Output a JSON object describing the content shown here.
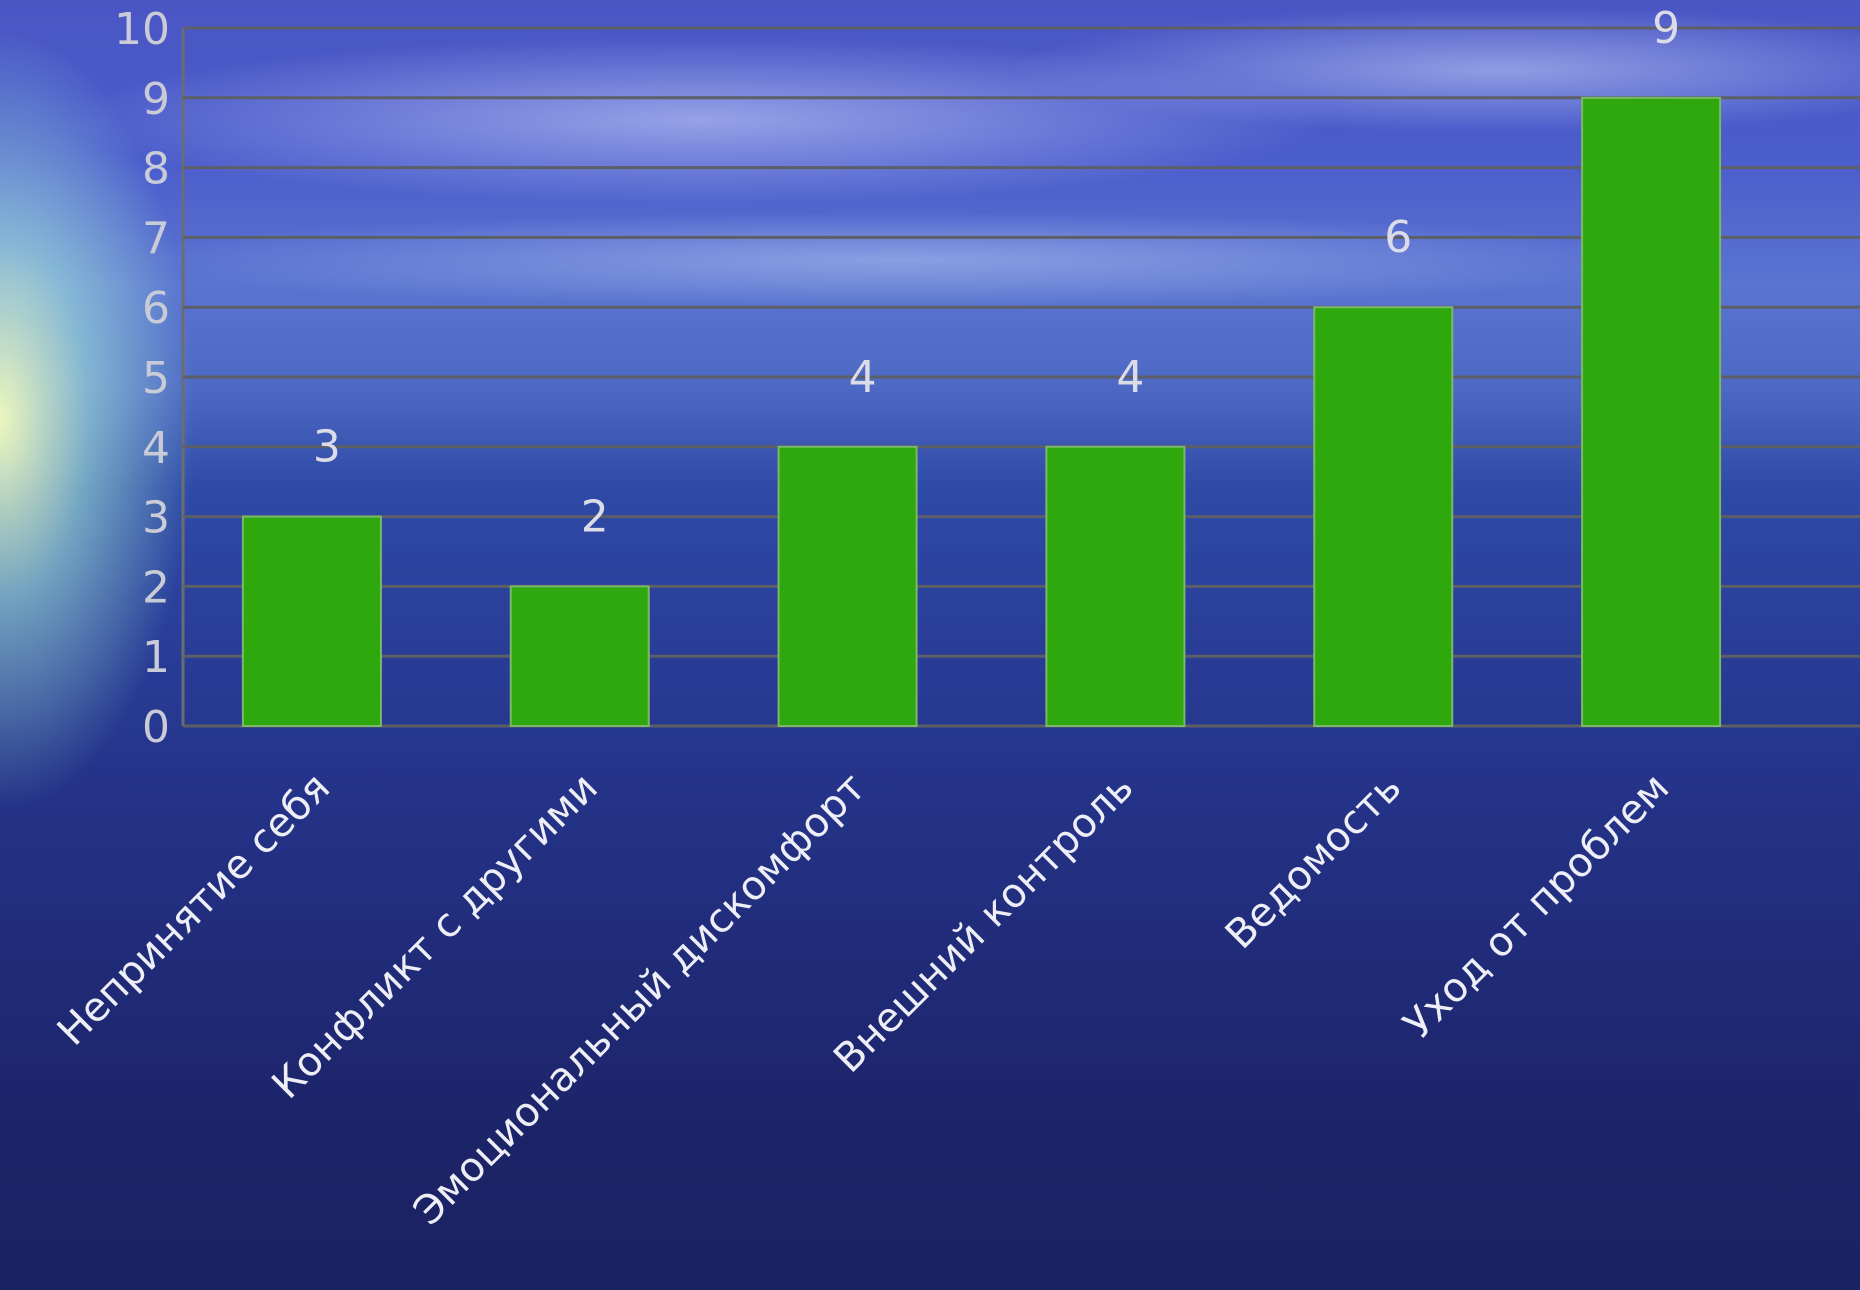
{
  "chart_data": {
    "type": "bar",
    "categories": [
      "Непринятие себя",
      "Конфликт с другими",
      "Эмоциональный дискомфорт",
      "Внешний контроль",
      "Ведомость",
      "Уход от проблем"
    ],
    "values": [
      3,
      2,
      4,
      4,
      6,
      9
    ],
    "data_labels": [
      "3",
      "2",
      "4",
      "4",
      "6",
      "9"
    ],
    "yticks": [
      "0",
      "1",
      "2",
      "3",
      "4",
      "5",
      "6",
      "7",
      "8",
      "9",
      "10"
    ],
    "ylim": [
      0,
      10
    ],
    "grid": true,
    "legend": "none",
    "colors": {
      "bar": "#2ea80c",
      "gridline": "#5c5f66",
      "labels": "#eeeef6"
    }
  }
}
